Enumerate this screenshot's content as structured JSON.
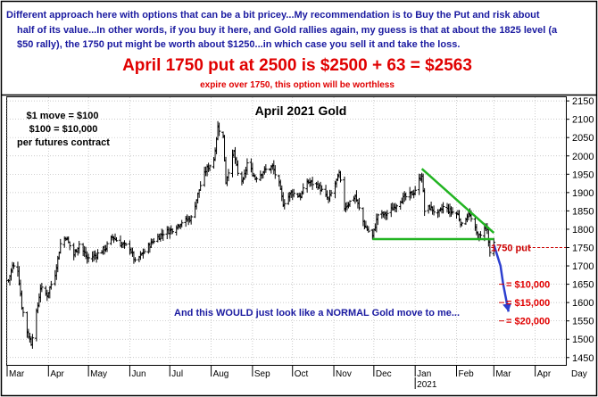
{
  "header": {
    "intro_line1": "Different approach here with options that can be a bit pricey...My recommendation is to Buy the Put and risk about",
    "intro_line2": "half of its value...In other words, if you buy it here, and Gold rallies again, my guess is that at about the 1825 level (a",
    "intro_line3": "$50 rally), the 1750 put might be worth about $1250...in which case you sell it and take the loss.",
    "headline": "April 1750 put at 2500 is $2500 + 63 = $2563",
    "subline": "expire over 1750, this option will be worthless"
  },
  "chart": {
    "title": "April 2021 Gold",
    "note_line1": "$1 move = $100",
    "note_line2": "$100 = $10,000",
    "note_line3": "per futures contract",
    "put_label": "1750 put",
    "loss_10k": "= $10,000",
    "loss_15k": "= $15,000",
    "loss_20k": "= $20,000",
    "comment": "And this WOULD just look like a NORMAL Gold move to me..."
  },
  "colors": {
    "headline": "#e00000",
    "intro": "#1a1aa0",
    "comment": "#1a1aa0",
    "candles": "#000000",
    "triangle": "#22b422",
    "projection": "#2c3fcf",
    "put_line": "#cc0000"
  },
  "chart_data": {
    "type": "ohlc",
    "title": "April 2021 Gold",
    "ylim": [
      1430,
      2160
    ],
    "y_ticks": [
      1450,
      1500,
      1550,
      1600,
      1650,
      1700,
      1750,
      1800,
      1850,
      1900,
      1950,
      2000,
      2050,
      2100,
      2150
    ],
    "x_ticks": [
      "Mar",
      "Apr",
      "May",
      "Jun",
      "Jul",
      "Aug",
      "Sep",
      "Oct",
      "Nov",
      "Dec",
      "Jan",
      "Feb",
      "Mar",
      "Apr"
    ],
    "x_tick_months": [
      [
        2020,
        3
      ],
      [
        2020,
        4
      ],
      [
        2020,
        5
      ],
      [
        2020,
        6
      ],
      [
        2020,
        7
      ],
      [
        2020,
        8
      ],
      [
        2020,
        9
      ],
      [
        2020,
        10
      ],
      [
        2020,
        11
      ],
      [
        2020,
        12
      ],
      [
        2021,
        1
      ],
      [
        2021,
        2
      ],
      [
        2021,
        3
      ],
      [
        2021,
        4
      ]
    ],
    "x_end_label": "Day",
    "year_label": "2021",
    "grid": true,
    "close_anchors": [
      [
        "2020-03-02",
        1660
      ],
      [
        "2020-03-05",
        1700
      ],
      [
        "2020-03-09",
        1690
      ],
      [
        "2020-03-12",
        1590
      ],
      [
        "2020-03-16",
        1520
      ],
      [
        "2020-03-19",
        1490
      ],
      [
        "2020-03-23",
        1570
      ],
      [
        "2020-03-26",
        1640
      ],
      [
        "2020-03-31",
        1620
      ],
      [
        "2020-04-06",
        1680
      ],
      [
        "2020-04-10",
        1760
      ],
      [
        "2020-04-14",
        1780
      ],
      [
        "2020-04-20",
        1730
      ],
      [
        "2020-04-24",
        1760
      ],
      [
        "2020-04-30",
        1720
      ],
      [
        "2020-05-07",
        1730
      ],
      [
        "2020-05-14",
        1750
      ],
      [
        "2020-05-19",
        1780
      ],
      [
        "2020-05-25",
        1760
      ],
      [
        "2020-06-01",
        1750
      ],
      [
        "2020-06-05",
        1710
      ],
      [
        "2020-06-12",
        1740
      ],
      [
        "2020-06-19",
        1770
      ],
      [
        "2020-06-26",
        1790
      ],
      [
        "2020-07-03",
        1800
      ],
      [
        "2020-07-10",
        1820
      ],
      [
        "2020-07-17",
        1830
      ],
      [
        "2020-07-24",
        1920
      ],
      [
        "2020-07-28",
        1960
      ],
      [
        "2020-08-03",
        1990
      ],
      [
        "2020-08-06",
        2080
      ],
      [
        "2020-08-10",
        2050
      ],
      [
        "2020-08-12",
        1930
      ],
      [
        "2020-08-14",
        1960
      ],
      [
        "2020-08-18",
        2010
      ],
      [
        "2020-08-21",
        1950
      ],
      [
        "2020-08-25",
        1930
      ],
      [
        "2020-08-28",
        1980
      ],
      [
        "2020-09-03",
        1940
      ],
      [
        "2020-09-10",
        1960
      ],
      [
        "2020-09-16",
        1970
      ],
      [
        "2020-09-21",
        1920
      ],
      [
        "2020-09-24",
        1870
      ],
      [
        "2020-09-30",
        1900
      ],
      [
        "2020-10-07",
        1890
      ],
      [
        "2020-10-12",
        1930
      ],
      [
        "2020-10-20",
        1920
      ],
      [
        "2020-10-28",
        1880
      ],
      [
        "2020-11-05",
        1950
      ],
      [
        "2020-11-09",
        1860
      ],
      [
        "2020-11-17",
        1890
      ],
      [
        "2020-11-24",
        1810
      ],
      [
        "2020-11-30",
        1780
      ],
      [
        "2020-12-04",
        1840
      ],
      [
        "2020-12-10",
        1840
      ],
      [
        "2020-12-16",
        1860
      ],
      [
        "2020-12-21",
        1880
      ],
      [
        "2020-12-31",
        1900
      ],
      [
        "2021-01-06",
        1950
      ],
      [
        "2021-01-08",
        1850
      ],
      [
        "2021-01-12",
        1860
      ],
      [
        "2021-01-18",
        1840
      ],
      [
        "2021-01-22",
        1860
      ],
      [
        "2021-01-27",
        1850
      ],
      [
        "2021-02-02",
        1840
      ],
      [
        "2021-02-05",
        1810
      ],
      [
        "2021-02-10",
        1845
      ],
      [
        "2021-02-17",
        1780
      ],
      [
        "2021-02-19",
        1780
      ],
      [
        "2021-02-22",
        1810
      ],
      [
        "2021-02-24",
        1800
      ],
      [
        "2021-02-26",
        1730
      ],
      [
        "2021-03-01",
        1760
      ]
    ],
    "triangle": {
      "upper_from": [
        "2021-01-06",
        1965
      ],
      "upper_to": [
        "2021-03-01",
        1790
      ],
      "base_from": [
        "2020-11-30",
        1773
      ],
      "base_to": [
        "2021-03-01",
        1773
      ]
    },
    "put_strike": 1750,
    "projection": [
      [
        "2021-03-01",
        1758
      ],
      [
        "2021-03-06",
        1700
      ],
      [
        "2021-03-08",
        1650
      ],
      [
        "2021-03-12",
        1575
      ]
    ],
    "loss_levels": [
      1650,
      1600,
      1550
    ]
  }
}
